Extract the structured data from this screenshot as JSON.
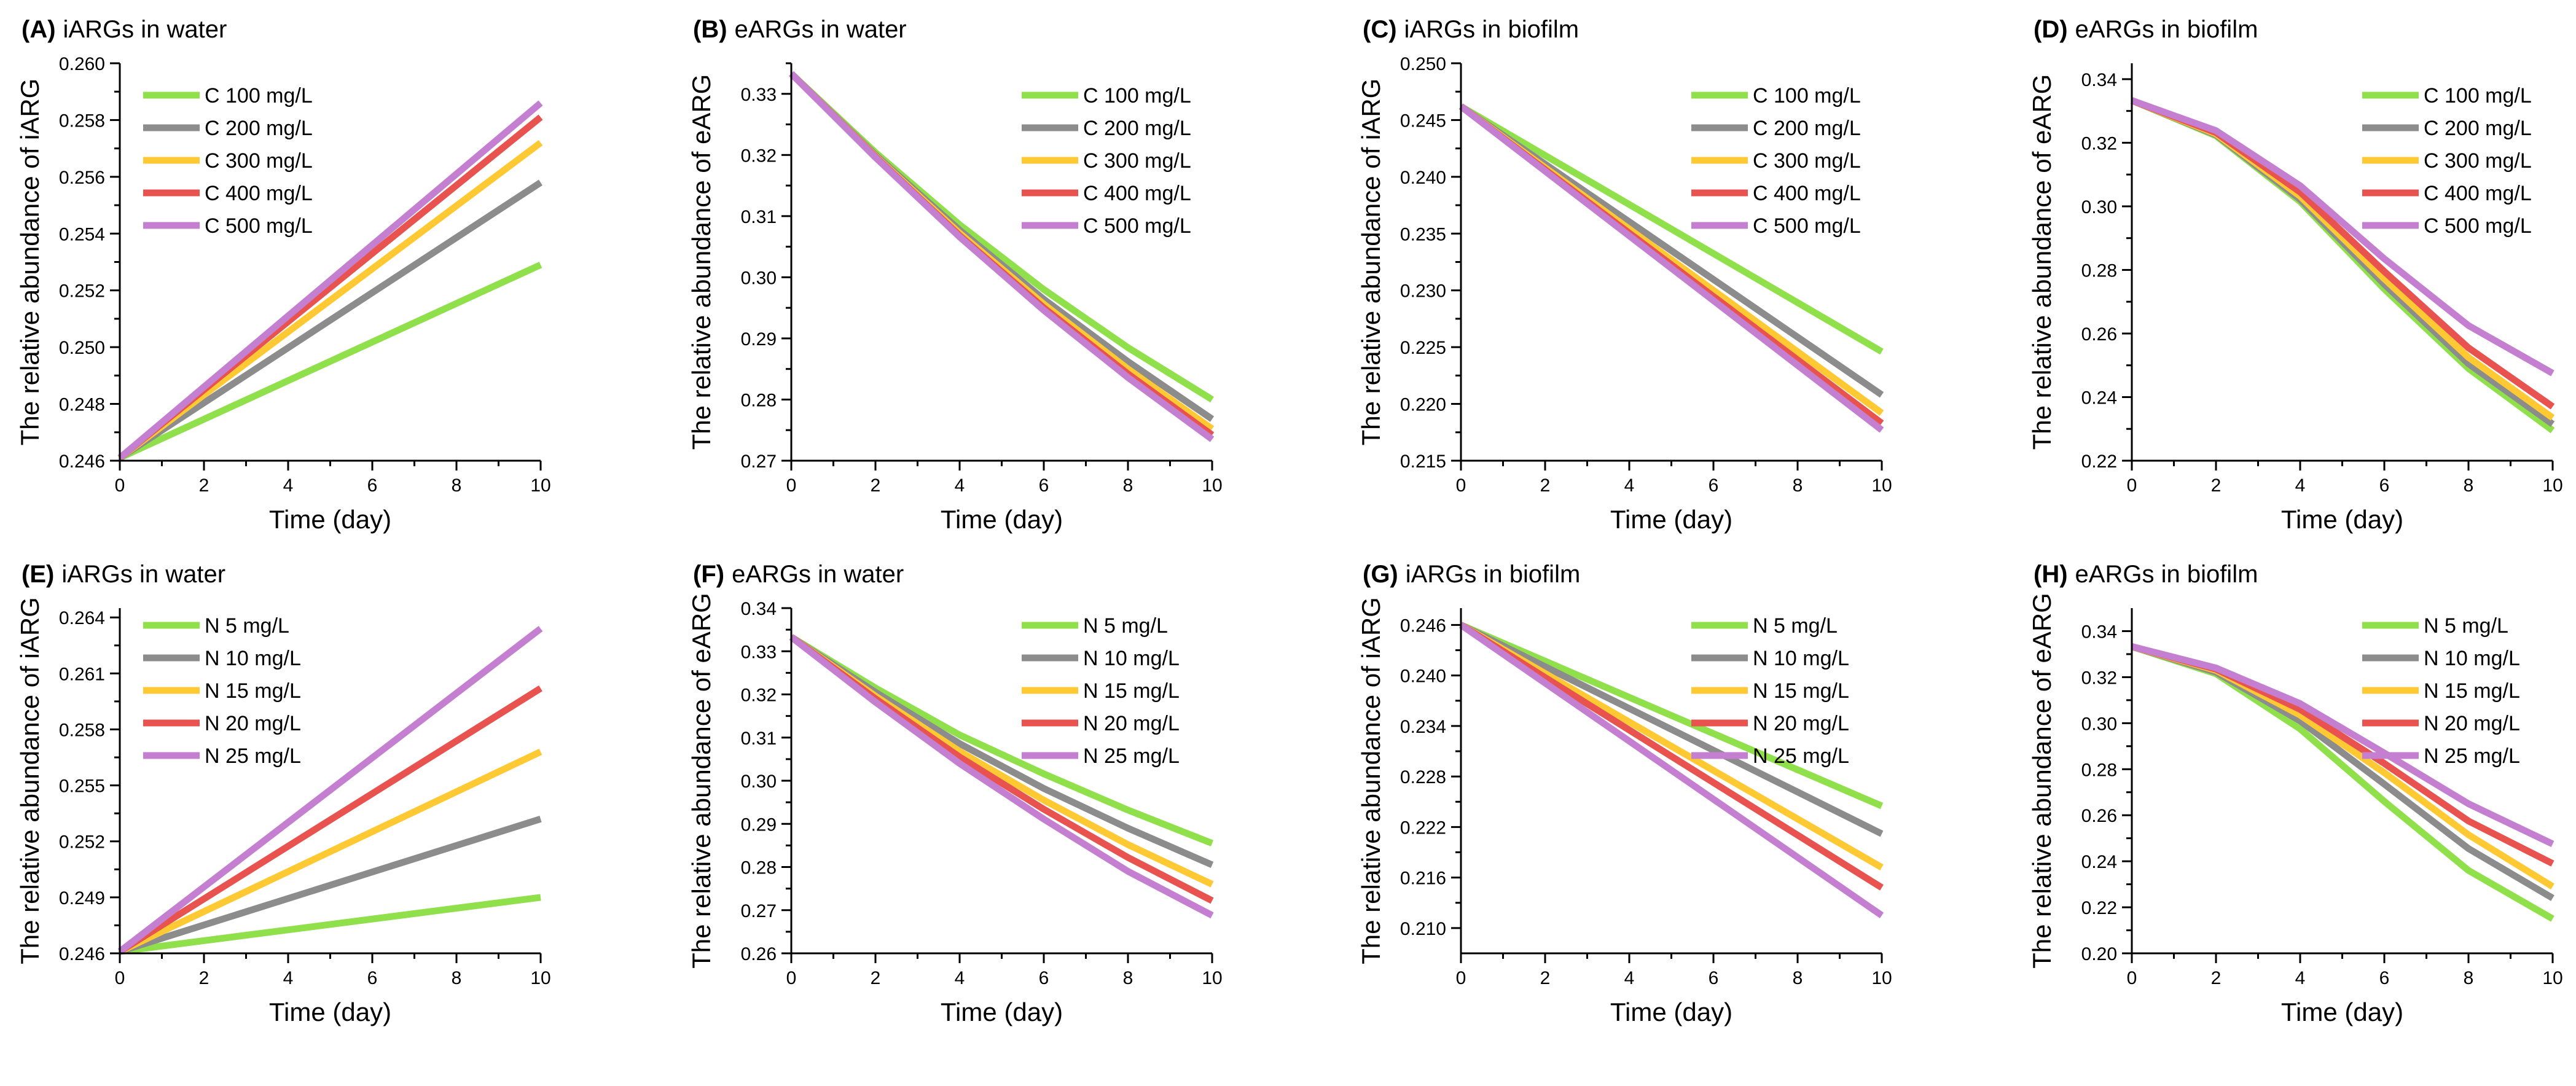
{
  "chart_data": [
    {
      "type": "line",
      "letter": "(A)",
      "title": "iARGs in water",
      "xlabel": "Time (day)",
      "ylabel": "The relative abundance of iARG",
      "xlim": [
        0,
        10
      ],
      "ylim": [
        0.246,
        0.26
      ],
      "xticks": [
        "0",
        "2",
        "4",
        "6",
        "8",
        "10"
      ],
      "yticks": [
        "0.246",
        "0.248",
        "0.250",
        "0.252",
        "0.254",
        "0.256",
        "0.258",
        "0.260"
      ],
      "legend_position": "top-left",
      "series": [
        {
          "name": "C 100 mg/L",
          "color": "#8fe04a",
          "x": [
            0,
            10
          ],
          "y": [
            0.2461,
            0.2529
          ]
        },
        {
          "name": "C 200 mg/L",
          "color": "#8c8c8c",
          "x": [
            0,
            10
          ],
          "y": [
            0.2461,
            0.2558
          ]
        },
        {
          "name": "C 300 mg/L",
          "color": "#ffc933",
          "x": [
            0,
            10
          ],
          "y": [
            0.2461,
            0.2572
          ]
        },
        {
          "name": "C 400 mg/L",
          "color": "#e8524f",
          "x": [
            0,
            10
          ],
          "y": [
            0.2461,
            0.2581
          ]
        },
        {
          "name": "C 500 mg/L",
          "color": "#c47fd0",
          "x": [
            0,
            10
          ],
          "y": [
            0.2461,
            0.2586
          ]
        }
      ]
    },
    {
      "type": "line",
      "letter": "(B)",
      "title": "eARGs in water",
      "xlabel": "Time (day)",
      "ylabel": "The relative abundance of eARG",
      "xlim": [
        0,
        10
      ],
      "ylim": [
        0.27,
        0.335
      ],
      "xticks": [
        "0",
        "2",
        "4",
        "6",
        "8",
        "10"
      ],
      "yticks": [
        "0.27",
        "0.28",
        "0.29",
        "0.30",
        "0.31",
        "0.32",
        "0.33"
      ],
      "legend_position": "top-right",
      "series": [
        {
          "name": "C 100 mg/L",
          "color": "#8fe04a",
          "x": [
            0,
            2,
            4,
            6,
            8,
            10
          ],
          "y": [
            0.3333,
            0.3204,
            0.3086,
            0.298,
            0.2885,
            0.28
          ]
        },
        {
          "name": "C 200 mg/L",
          "color": "#8c8c8c",
          "x": [
            0,
            2,
            4,
            6,
            8,
            10
          ],
          "y": [
            0.3333,
            0.32,
            0.3077,
            0.2964,
            0.2862,
            0.2768
          ]
        },
        {
          "name": "C 300 mg/L",
          "color": "#ffc933",
          "x": [
            0,
            2,
            4,
            6,
            8,
            10
          ],
          "y": [
            0.3333,
            0.3198,
            0.3072,
            0.2956,
            0.285,
            0.2752
          ]
        },
        {
          "name": "C 400 mg/L",
          "color": "#e8524f",
          "x": [
            0,
            2,
            4,
            6,
            8,
            10
          ],
          "y": [
            0.3333,
            0.3197,
            0.3068,
            0.295,
            0.2842,
            0.2742
          ]
        },
        {
          "name": "C 500 mg/L",
          "color": "#c47fd0",
          "x": [
            0,
            2,
            4,
            6,
            8,
            10
          ],
          "y": [
            0.3333,
            0.3196,
            0.3066,
            0.2946,
            0.2836,
            0.2735
          ]
        }
      ]
    },
    {
      "type": "line",
      "letter": "(C)",
      "title": "iARGs in biofilm",
      "xlabel": "Time (day)",
      "ylabel": "The relative abundance of iARG",
      "xlim": [
        0,
        10
      ],
      "ylim": [
        0.215,
        0.25
      ],
      "xticks": [
        "0",
        "2",
        "4",
        "6",
        "8",
        "10"
      ],
      "yticks": [
        "0.215",
        "0.220",
        "0.225",
        "0.230",
        "0.235",
        "0.240",
        "0.245",
        "0.250"
      ],
      "legend_position": "top-right",
      "series": [
        {
          "name": "C 100 mg/L",
          "color": "#8fe04a",
          "x": [
            0,
            10
          ],
          "y": [
            0.2462,
            0.2246
          ]
        },
        {
          "name": "C 200 mg/L",
          "color": "#8c8c8c",
          "x": [
            0,
            10
          ],
          "y": [
            0.2462,
            0.2208
          ]
        },
        {
          "name": "C 300 mg/L",
          "color": "#ffc933",
          "x": [
            0,
            10
          ],
          "y": [
            0.2462,
            0.2192
          ]
        },
        {
          "name": "C 400 mg/L",
          "color": "#e8524f",
          "x": [
            0,
            10
          ],
          "y": [
            0.2462,
            0.2183
          ]
        },
        {
          "name": "C 500 mg/L",
          "color": "#c47fd0",
          "x": [
            0,
            10
          ],
          "y": [
            0.2462,
            0.2177
          ]
        }
      ]
    },
    {
      "type": "line",
      "letter": "(D)",
      "title": "eARGs in biofilm",
      "xlabel": "Time (day)",
      "ylabel": "The relative abundance of eARG",
      "xlim": [
        0,
        10
      ],
      "ylim": [
        0.22,
        0.345
      ],
      "xticks": [
        "0",
        "2",
        "4",
        "6",
        "8",
        "10"
      ],
      "yticks": [
        "0.22",
        "0.24",
        "0.26",
        "0.28",
        "0.30",
        "0.32",
        "0.34"
      ],
      "legend_position": "top-right",
      "series": [
        {
          "name": "C 100 mg/L",
          "color": "#8fe04a",
          "x": [
            0,
            2,
            4,
            6,
            8,
            10
          ],
          "y": [
            0.3333,
            0.3222,
            0.3015,
            0.274,
            0.249,
            0.2295
          ]
        },
        {
          "name": "C 200 mg/L",
          "color": "#8c8c8c",
          "x": [
            0,
            2,
            4,
            6,
            8,
            10
          ],
          "y": [
            0.3333,
            0.3225,
            0.3022,
            0.2755,
            0.2505,
            0.2315
          ]
        },
        {
          "name": "C 300 mg/L",
          "color": "#ffc933",
          "x": [
            0,
            2,
            4,
            6,
            8,
            10
          ],
          "y": [
            0.3333,
            0.3228,
            0.3032,
            0.2772,
            0.2525,
            0.2335
          ]
        },
        {
          "name": "C 400 mg/L",
          "color": "#e8524f",
          "x": [
            0,
            2,
            4,
            6,
            8,
            10
          ],
          "y": [
            0.3333,
            0.3232,
            0.3045,
            0.2795,
            0.2555,
            0.237
          ]
        },
        {
          "name": "C 500 mg/L",
          "color": "#c47fd0",
          "x": [
            0,
            2,
            4,
            6,
            8,
            10
          ],
          "y": [
            0.3333,
            0.3238,
            0.3065,
            0.2835,
            0.2625,
            0.2475
          ]
        }
      ]
    },
    {
      "type": "line",
      "letter": "(E)",
      "title": "iARGs in water",
      "xlabel": "Time (day)",
      "ylabel": "The relative abundance of iARG",
      "xlim": [
        0,
        10
      ],
      "ylim": [
        0.246,
        0.2645
      ],
      "xticks": [
        "0",
        "2",
        "4",
        "6",
        "8",
        "10"
      ],
      "yticks": [
        "0.246",
        "0.249",
        "0.252",
        "0.255",
        "0.258",
        "0.261",
        "0.264"
      ],
      "legend_position": "top-left",
      "series": [
        {
          "name": "N 5 mg/L",
          "color": "#8fe04a",
          "x": [
            0,
            10
          ],
          "y": [
            0.2461,
            0.249
          ]
        },
        {
          "name": "N 10 mg/L",
          "color": "#8c8c8c",
          "x": [
            0,
            10
          ],
          "y": [
            0.2461,
            0.2532
          ]
        },
        {
          "name": "N 15 mg/L",
          "color": "#ffc933",
          "x": [
            0,
            10
          ],
          "y": [
            0.2461,
            0.2568
          ]
        },
        {
          "name": "N 20 mg/L",
          "color": "#e8524f",
          "x": [
            0,
            10
          ],
          "y": [
            0.2461,
            0.2602
          ]
        },
        {
          "name": "N 25 mg/L",
          "color": "#c47fd0",
          "x": [
            0,
            10
          ],
          "y": [
            0.2461,
            0.2634
          ]
        }
      ]
    },
    {
      "type": "line",
      "letter": "(F)",
      "title": "eARGs in water",
      "xlabel": "Time (day)",
      "ylabel": "The relative abundance of eARG",
      "xlim": [
        0,
        10
      ],
      "ylim": [
        0.26,
        0.34
      ],
      "xticks": [
        "0",
        "2",
        "4",
        "6",
        "8",
        "10"
      ],
      "yticks": [
        "0.26",
        "0.27",
        "0.28",
        "0.29",
        "0.30",
        "0.31",
        "0.32",
        "0.33",
        "0.34"
      ],
      "legend_position": "top-right",
      "series": [
        {
          "name": "N 5 mg/L",
          "color": "#8fe04a",
          "x": [
            0,
            2,
            4,
            6,
            8,
            10
          ],
          "y": [
            0.3333,
            0.3215,
            0.3106,
            0.3016,
            0.2932,
            0.2855
          ]
        },
        {
          "name": "N 10 mg/L",
          "color": "#8c8c8c",
          "x": [
            0,
            2,
            4,
            6,
            8,
            10
          ],
          "y": [
            0.3333,
            0.3205,
            0.3086,
            0.2982,
            0.289,
            0.2805
          ]
        },
        {
          "name": "N 15 mg/L",
          "color": "#ffc933",
          "x": [
            0,
            2,
            4,
            6,
            8,
            10
          ],
          "y": [
            0.3333,
            0.3196,
            0.3068,
            0.2955,
            0.2852,
            0.276
          ]
        },
        {
          "name": "N 20 mg/L",
          "color": "#e8524f",
          "x": [
            0,
            2,
            4,
            6,
            8,
            10
          ],
          "y": [
            0.3333,
            0.319,
            0.3055,
            0.2934,
            0.2822,
            0.2722
          ]
        },
        {
          "name": "N 25 mg/L",
          "color": "#c47fd0",
          "x": [
            0,
            2,
            4,
            6,
            8,
            10
          ],
          "y": [
            0.3333,
            0.3182,
            0.304,
            0.2911,
            0.279,
            0.2688
          ]
        }
      ]
    },
    {
      "type": "line",
      "letter": "(G)",
      "title": "iARGs in biofilm",
      "xlabel": "Time (day)",
      "ylabel": "The relative abundance of iARG",
      "xlim": [
        0,
        10
      ],
      "ylim": [
        0.207,
        0.248
      ],
      "xticks": [
        "0",
        "2",
        "4",
        "6",
        "8",
        "10"
      ],
      "yticks": [
        "0.210",
        "0.216",
        "0.222",
        "0.228",
        "0.234",
        "0.240",
        "0.246"
      ],
      "legend_position": "top-right",
      "series": [
        {
          "name": "N 5 mg/L",
          "color": "#8fe04a",
          "x": [
            0,
            10
          ],
          "y": [
            0.246,
            0.2245
          ]
        },
        {
          "name": "N 10 mg/L",
          "color": "#8c8c8c",
          "x": [
            0,
            10
          ],
          "y": [
            0.246,
            0.2212
          ]
        },
        {
          "name": "N 15 mg/L",
          "color": "#ffc933",
          "x": [
            0,
            10
          ],
          "y": [
            0.246,
            0.2172
          ]
        },
        {
          "name": "N 20 mg/L",
          "color": "#e8524f",
          "x": [
            0,
            10
          ],
          "y": [
            0.246,
            0.2148
          ]
        },
        {
          "name": "N 25 mg/L",
          "color": "#c47fd0",
          "x": [
            0,
            10
          ],
          "y": [
            0.246,
            0.2115
          ]
        }
      ]
    },
    {
      "type": "line",
      "letter": "(H)",
      "title": "eARGs in biofilm",
      "xlabel": "Time (day)",
      "ylabel": "The relative abundance of eARG",
      "xlim": [
        0,
        10
      ],
      "ylim": [
        0.2,
        0.35
      ],
      "xticks": [
        "0",
        "2",
        "4",
        "6",
        "8",
        "10"
      ],
      "yticks": [
        "0.20",
        "0.22",
        "0.24",
        "0.26",
        "0.28",
        "0.30",
        "0.32",
        "0.34"
      ],
      "legend_position": "top-right",
      "series": [
        {
          "name": "N 5 mg/L",
          "color": "#8fe04a",
          "x": [
            0,
            2,
            4,
            6,
            8,
            10
          ],
          "y": [
            0.3333,
            0.3215,
            0.2975,
            0.266,
            0.236,
            0.215
          ]
        },
        {
          "name": "N 10 mg/L",
          "color": "#8c8c8c",
          "x": [
            0,
            2,
            4,
            6,
            8,
            10
          ],
          "y": [
            0.3333,
            0.3222,
            0.301,
            0.2735,
            0.2455,
            0.224
          ]
        },
        {
          "name": "N 15 mg/L",
          "color": "#ffc933",
          "x": [
            0,
            2,
            4,
            6,
            8,
            10
          ],
          "y": [
            0.3333,
            0.323,
            0.3035,
            0.2785,
            0.2515,
            0.229
          ]
        },
        {
          "name": "N 20 mg/L",
          "color": "#e8524f",
          "x": [
            0,
            2,
            4,
            6,
            8,
            10
          ],
          "y": [
            0.3333,
            0.3235,
            0.306,
            0.2825,
            0.2575,
            0.239
          ]
        },
        {
          "name": "N 25 mg/L",
          "color": "#c47fd0",
          "x": [
            0,
            2,
            4,
            6,
            8,
            10
          ],
          "y": [
            0.3333,
            0.324,
            0.3085,
            0.287,
            0.265,
            0.2475
          ]
        }
      ]
    }
  ]
}
